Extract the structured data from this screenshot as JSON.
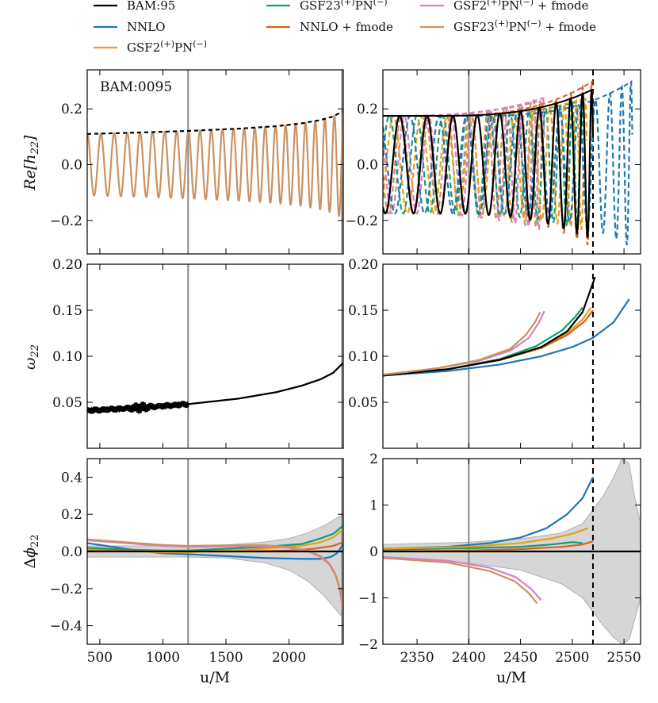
{
  "colors": {
    "bam": "#000000",
    "nnlo": "#1f77b4",
    "gsf2": "#e6a117",
    "gsf23": "#159a74",
    "nnlo_fmode": "#d9601e",
    "gsf2_fmode": "#d67fc6",
    "gsf23_fmode": "#cc9161",
    "vline": "#888888",
    "band": "#d6d6d6"
  },
  "legend": [
    {
      "key": "bam",
      "label": "BAM:95",
      "sup1": "",
      "mid": "",
      "sup2": "",
      "suffix": ""
    },
    {
      "key": "nnlo",
      "label": "NNLO",
      "sup1": "",
      "mid": "",
      "sup2": "",
      "suffix": ""
    },
    {
      "key": "gsf2",
      "label": "GSF2",
      "sup1": "(+)",
      "mid": "PN",
      "sup2": "(−)",
      "suffix": ""
    },
    {
      "key": "gsf23",
      "label": "GSF23",
      "sup1": "(+)",
      "mid": "PN",
      "sup2": "(−)",
      "suffix": ""
    },
    {
      "key": "nnlo_fmode",
      "label": "NNLO + fmode",
      "sup1": "",
      "mid": "",
      "sup2": "",
      "suffix": ""
    },
    {
      "key": "gsf2_fmode",
      "label": "GSF2",
      "sup1": "(+)",
      "mid": "PN",
      "sup2": "(−)",
      "suffix": " + fmode"
    },
    {
      "key": "gsf23_fmode",
      "label": "GSF23",
      "sup1": "(+)",
      "mid": "PN",
      "sup2": "(−)",
      "suffix": " + fmode"
    }
  ],
  "annotation": "BAM:0095",
  "chart_data": [
    {
      "id": "re_h22_full",
      "type": "line",
      "ylabel": "Re[h22]",
      "xlabel": "",
      "xlim": [
        400,
        2430
      ],
      "ylim": [
        -0.32,
        0.34
      ],
      "xticks": [
        500,
        1000,
        1500,
        2000
      ],
      "xtick_labels": [],
      "yticks": [
        -0.2,
        0.0,
        0.2
      ],
      "ytick_labels": [
        "−0.2",
        "0.0",
        "0.2"
      ],
      "vlines": [
        {
          "x": 1200,
          "style": "gray"
        },
        {
          "x": 2420,
          "style": "gray"
        }
      ],
      "series": [
        {
          "name": "Re[h22]",
          "key": "gsf23_fmode",
          "model": "osc_full"
        },
        {
          "name": "amplitude",
          "key": "bam",
          "dashed": true,
          "x": [
            400,
            800,
            1200,
            1600,
            1900,
            2100,
            2250,
            2350,
            2420
          ],
          "y": [
            0.11,
            0.115,
            0.121,
            0.129,
            0.138,
            0.148,
            0.16,
            0.173,
            0.19
          ]
        }
      ]
    },
    {
      "id": "re_h22_zoom",
      "type": "line",
      "ylabel": "",
      "xlabel": "",
      "xlim": [
        2317,
        2566
      ],
      "ylim": [
        -0.32,
        0.34
      ],
      "xticks": [
        2350,
        2400,
        2450,
        2500,
        2550
      ],
      "xtick_labels": [],
      "yticks": [
        -0.2,
        0.0,
        0.2
      ],
      "ytick_labels": [
        "−0.2",
        "0.0",
        "0.2"
      ],
      "vlines": [
        {
          "x": 2400,
          "style": "gray"
        },
        {
          "x": 2520,
          "style": "dashed"
        }
      ],
      "series": [
        {
          "name": "GSF23 + fmode",
          "key": "gsf23_fmode",
          "dashed": true,
          "t_merger": 2470,
          "amp0": 0.175,
          "amp_peak": 0.23
        },
        {
          "name": "GSF2 + fmode",
          "key": "gsf2_fmode",
          "dashed": true,
          "t_merger": 2473,
          "amp0": 0.175,
          "amp_peak": 0.24
        },
        {
          "name": "NNLO + fmode",
          "key": "nnlo_fmode",
          "dashed": true,
          "t_merger": 2520,
          "amp0": 0.175,
          "amp_peak": 0.3
        },
        {
          "name": "GSF23",
          "key": "gsf23",
          "dashed": true,
          "t_merger": 2510,
          "amp0": 0.175,
          "amp_peak": 0.23
        },
        {
          "name": "GSF2",
          "key": "gsf2",
          "dashed": true,
          "t_merger": 2514,
          "amp0": 0.175,
          "amp_peak": 0.24
        },
        {
          "name": "NNLO",
          "key": "nnlo",
          "dashed": true,
          "t_merger": 2558,
          "amp0": 0.175,
          "amp_peak": 0.3
        },
        {
          "name": "BAM:95",
          "key": "bam",
          "dashed": false,
          "t_merger": 2520,
          "amp0": 0.175,
          "amp_peak": 0.27
        }
      ]
    },
    {
      "id": "omega_full",
      "type": "line",
      "ylabel": "omega22",
      "xlabel": "",
      "xlim": [
        400,
        2430
      ],
      "ylim": [
        0.0,
        0.2
      ],
      "xticks": [
        500,
        1000,
        1500,
        2000
      ],
      "xtick_labels": [],
      "yticks": [
        0.05,
        0.1,
        0.15,
        0.2
      ],
      "ytick_labels": [
        "0.05",
        "0.10",
        "0.15",
        "0.20"
      ],
      "vlines": [
        {
          "x": 1200,
          "style": "gray"
        },
        {
          "x": 2420,
          "style": "gray"
        }
      ],
      "series": [
        {
          "name": "GSF23 + fmode",
          "key": "gsf23_fmode",
          "x": [
            400,
            800,
            1200,
            1600,
            1900,
            2100,
            2250,
            2350,
            2430
          ],
          "y": [
            0.041,
            0.044,
            0.048,
            0.054,
            0.061,
            0.068,
            0.075,
            0.082,
            0.093
          ]
        },
        {
          "name": "BAM:95",
          "key": "bam",
          "noisy": true,
          "noise_end": 1200,
          "x": [
            400,
            800,
            1200,
            1600,
            1900,
            2100,
            2250,
            2350,
            2430
          ],
          "y": [
            0.041,
            0.044,
            0.048,
            0.054,
            0.061,
            0.068,
            0.075,
            0.082,
            0.093
          ]
        }
      ]
    },
    {
      "id": "omega_zoom",
      "type": "line",
      "ylabel": "",
      "xlabel": "",
      "xlim": [
        2317,
        2566
      ],
      "ylim": [
        0.0,
        0.2
      ],
      "xticks": [
        2350,
        2400,
        2450,
        2500,
        2550
      ],
      "xtick_labels": [],
      "yticks": [
        0.05,
        0.1,
        0.15,
        0.2
      ],
      "ytick_labels": [
        "0.05",
        "0.10",
        "0.15",
        "0.20"
      ],
      "vlines": [
        {
          "x": 2400,
          "style": "gray"
        },
        {
          "x": 2520,
          "style": "dashed"
        }
      ],
      "series": [
        {
          "name": "NNLO",
          "key": "nnlo",
          "x": [
            2317,
            2380,
            2430,
            2470,
            2500,
            2520,
            2540,
            2555
          ],
          "y": [
            0.079,
            0.084,
            0.091,
            0.1,
            0.11,
            0.12,
            0.137,
            0.162
          ]
        },
        {
          "name": "GSF2",
          "key": "gsf2",
          "x": [
            2317,
            2380,
            2430,
            2470,
            2495,
            2510,
            2518
          ],
          "y": [
            0.08,
            0.086,
            0.096,
            0.11,
            0.125,
            0.14,
            0.153
          ]
        },
        {
          "name": "NNLO + fmode",
          "key": "nnlo_fmode",
          "x": [
            2317,
            2380,
            2430,
            2470,
            2495,
            2512,
            2520
          ],
          "y": [
            0.08,
            0.086,
            0.096,
            0.109,
            0.123,
            0.138,
            0.15
          ]
        },
        {
          "name": "GSF23",
          "key": "gsf23",
          "x": [
            2317,
            2380,
            2430,
            2465,
            2490,
            2503,
            2510
          ],
          "y": [
            0.08,
            0.086,
            0.097,
            0.111,
            0.128,
            0.143,
            0.153
          ]
        },
        {
          "name": "BAM:95",
          "key": "bam",
          "x": [
            2317,
            2380,
            2430,
            2470,
            2495,
            2510,
            2522
          ],
          "y": [
            0.079,
            0.086,
            0.096,
            0.11,
            0.127,
            0.148,
            0.186
          ]
        },
        {
          "name": "GSF2 + fmode",
          "key": "gsf2_fmode",
          "x": [
            2317,
            2370,
            2410,
            2440,
            2458,
            2468,
            2473
          ],
          "y": [
            0.08,
            0.087,
            0.095,
            0.106,
            0.12,
            0.137,
            0.149
          ]
        },
        {
          "name": "GSF23 + fmode",
          "key": "gsf23_fmode",
          "x": [
            2317,
            2370,
            2410,
            2440,
            2455,
            2464,
            2469
          ],
          "y": [
            0.08,
            0.087,
            0.096,
            0.108,
            0.123,
            0.137,
            0.148
          ]
        }
      ]
    },
    {
      "id": "dphi_full",
      "type": "line",
      "ylabel": "Delta phi22",
      "xlabel": "u/M",
      "xlim": [
        400,
        2430
      ],
      "ylim": [
        -0.5,
        0.5
      ],
      "xticks": [
        500,
        1000,
        1500,
        2000
      ],
      "xtick_labels": [
        "500",
        "1000",
        "1500",
        "2000"
      ],
      "yticks": [
        -0.4,
        -0.2,
        0.0,
        0.2,
        0.4
      ],
      "ytick_labels": [
        "−0.4",
        "−0.2",
        "0.0",
        "0.2",
        "0.4"
      ],
      "vlines": [
        {
          "x": 1200,
          "style": "gray"
        },
        {
          "x": 2420,
          "style": "gray"
        }
      ],
      "band": {
        "x": [
          400,
          900,
          1200,
          1500,
          1800,
          2000,
          2150,
          2280,
          2380,
          2430
        ],
        "upper": [
          0.03,
          0.03,
          0.03,
          0.035,
          0.05,
          0.07,
          0.1,
          0.14,
          0.18,
          0.2
        ],
        "lower": [
          -0.03,
          -0.03,
          -0.03,
          -0.035,
          -0.06,
          -0.1,
          -0.16,
          -0.24,
          -0.32,
          -0.36
        ]
      },
      "series": [
        {
          "name": "BAM:95",
          "key": "bam",
          "x": [
            400,
            2430
          ],
          "y": [
            0.0,
            0.0
          ]
        },
        {
          "name": "NNLO",
          "key": "nnlo",
          "x": [
            400,
            600,
            800,
            1000,
            1200,
            1500,
            1800,
            2100,
            2250,
            2330,
            2380,
            2430
          ],
          "y": [
            0.045,
            0.025,
            0.005,
            -0.01,
            -0.015,
            -0.025,
            -0.035,
            -0.04,
            -0.04,
            -0.03,
            -0.01,
            0.04
          ]
        },
        {
          "name": "GSF2",
          "key": "gsf2",
          "x": [
            400,
            700,
            1000,
            1200,
            1500,
            1800,
            2100,
            2250,
            2350,
            2430
          ],
          "y": [
            0.015,
            0.005,
            -0.005,
            -0.005,
            0.005,
            0.015,
            0.03,
            0.05,
            0.075,
            0.12
          ]
        },
        {
          "name": "GSF23",
          "key": "gsf23",
          "x": [
            400,
            700,
            1000,
            1200,
            1500,
            1800,
            2100,
            2250,
            2350,
            2430
          ],
          "y": [
            0.02,
            0.01,
            0.005,
            0.005,
            0.015,
            0.025,
            0.04,
            0.07,
            0.095,
            0.14
          ]
        },
        {
          "name": "NNLO + fmode",
          "key": "nnlo_fmode",
          "x": [
            400,
            800,
            1200,
            1600,
            2000,
            2200,
            2350,
            2430
          ],
          "y": [
            0.005,
            0.002,
            0.0,
            0.0,
            0.005,
            0.015,
            0.03,
            0.05
          ]
        },
        {
          "name": "GSF2 + fmode",
          "key": "gsf2_fmode",
          "x": [
            400,
            700,
            1000,
            1200,
            1500,
            1800,
            2000,
            2150,
            2250,
            2320,
            2370,
            2400,
            2430
          ],
          "y": [
            0.06,
            0.045,
            0.03,
            0.025,
            0.028,
            0.028,
            0.02,
            0.0,
            -0.03,
            -0.07,
            -0.13,
            -0.2,
            -0.32
          ]
        },
        {
          "name": "GSF23 + fmode",
          "key": "gsf23_fmode",
          "x": [
            400,
            700,
            1000,
            1200,
            1500,
            1800,
            2000,
            2150,
            2250,
            2320,
            2370,
            2400,
            2430
          ],
          "y": [
            0.065,
            0.05,
            0.035,
            0.03,
            0.033,
            0.033,
            0.025,
            0.005,
            -0.025,
            -0.065,
            -0.125,
            -0.19,
            -0.3
          ]
        }
      ]
    },
    {
      "id": "dphi_zoom",
      "type": "line",
      "ylabel": "",
      "xlabel": "u/M",
      "xlim": [
        2317,
        2566
      ],
      "ylim": [
        -2.0,
        2.0
      ],
      "xticks": [
        2350,
        2400,
        2450,
        2500,
        2550
      ],
      "xtick_labels": [
        "2350",
        "2400",
        "2450",
        "2500",
        "2550"
      ],
      "yticks": [
        -2,
        -1,
        0,
        1,
        2
      ],
      "ytick_labels": [
        "−2",
        "−1",
        "0",
        "1",
        "2"
      ],
      "vlines": [
        {
          "x": 2400,
          "style": "gray"
        },
        {
          "x": 2520,
          "style": "dashed"
        }
      ],
      "band": {
        "x": [
          2317,
          2400,
          2450,
          2490,
          2510,
          2520,
          2530,
          2540,
          2548,
          2555,
          2560,
          2566
        ],
        "upper": [
          0.15,
          0.2,
          0.27,
          0.4,
          0.6,
          0.9,
          1.2,
          1.6,
          2.0,
          1.9,
          1.2,
          0.6
        ],
        "lower": [
          -0.15,
          -0.25,
          -0.4,
          -0.7,
          -1.0,
          -1.3,
          -1.6,
          -1.85,
          -2.0,
          -1.9,
          -1.5,
          -1.0
        ]
      },
      "series": [
        {
          "name": "BAM:95",
          "key": "bam",
          "x": [
            2317,
            2566
          ],
          "y": [
            0,
            0
          ]
        },
        {
          "name": "NNLO",
          "key": "nnlo",
          "x": [
            2317,
            2380,
            2420,
            2450,
            2475,
            2495,
            2510,
            2520
          ],
          "y": [
            0.06,
            0.1,
            0.18,
            0.3,
            0.5,
            0.8,
            1.15,
            1.6
          ]
        },
        {
          "name": "GSF23",
          "key": "gsf23",
          "x": [
            2317,
            2400,
            2450,
            2480,
            2500,
            2510
          ],
          "y": [
            0.04,
            0.07,
            0.1,
            0.15,
            0.2,
            0.18
          ]
        },
        {
          "name": "GSF2",
          "key": "gsf2",
          "x": [
            2317,
            2400,
            2450,
            2480,
            2500,
            2515
          ],
          "y": [
            0.06,
            0.1,
            0.18,
            0.28,
            0.38,
            0.5
          ]
        },
        {
          "name": "NNLO + fmode",
          "key": "nnlo_fmode",
          "x": [
            2317,
            2400,
            2450,
            2490,
            2510,
            2520
          ],
          "y": [
            0.0,
            0.02,
            0.05,
            0.1,
            0.15,
            0.22
          ]
        },
        {
          "name": "GSF2 + fmode",
          "key": "gsf2_fmode",
          "x": [
            2317,
            2380,
            2420,
            2445,
            2460,
            2470
          ],
          "y": [
            -0.12,
            -0.2,
            -0.35,
            -0.55,
            -0.8,
            -1.05
          ]
        },
        {
          "name": "GSF23 + fmode",
          "key": "gsf23_fmode",
          "x": [
            2317,
            2380,
            2420,
            2445,
            2458,
            2466
          ],
          "y": [
            -0.14,
            -0.24,
            -0.42,
            -0.65,
            -0.9,
            -1.12
          ]
        }
      ]
    }
  ]
}
